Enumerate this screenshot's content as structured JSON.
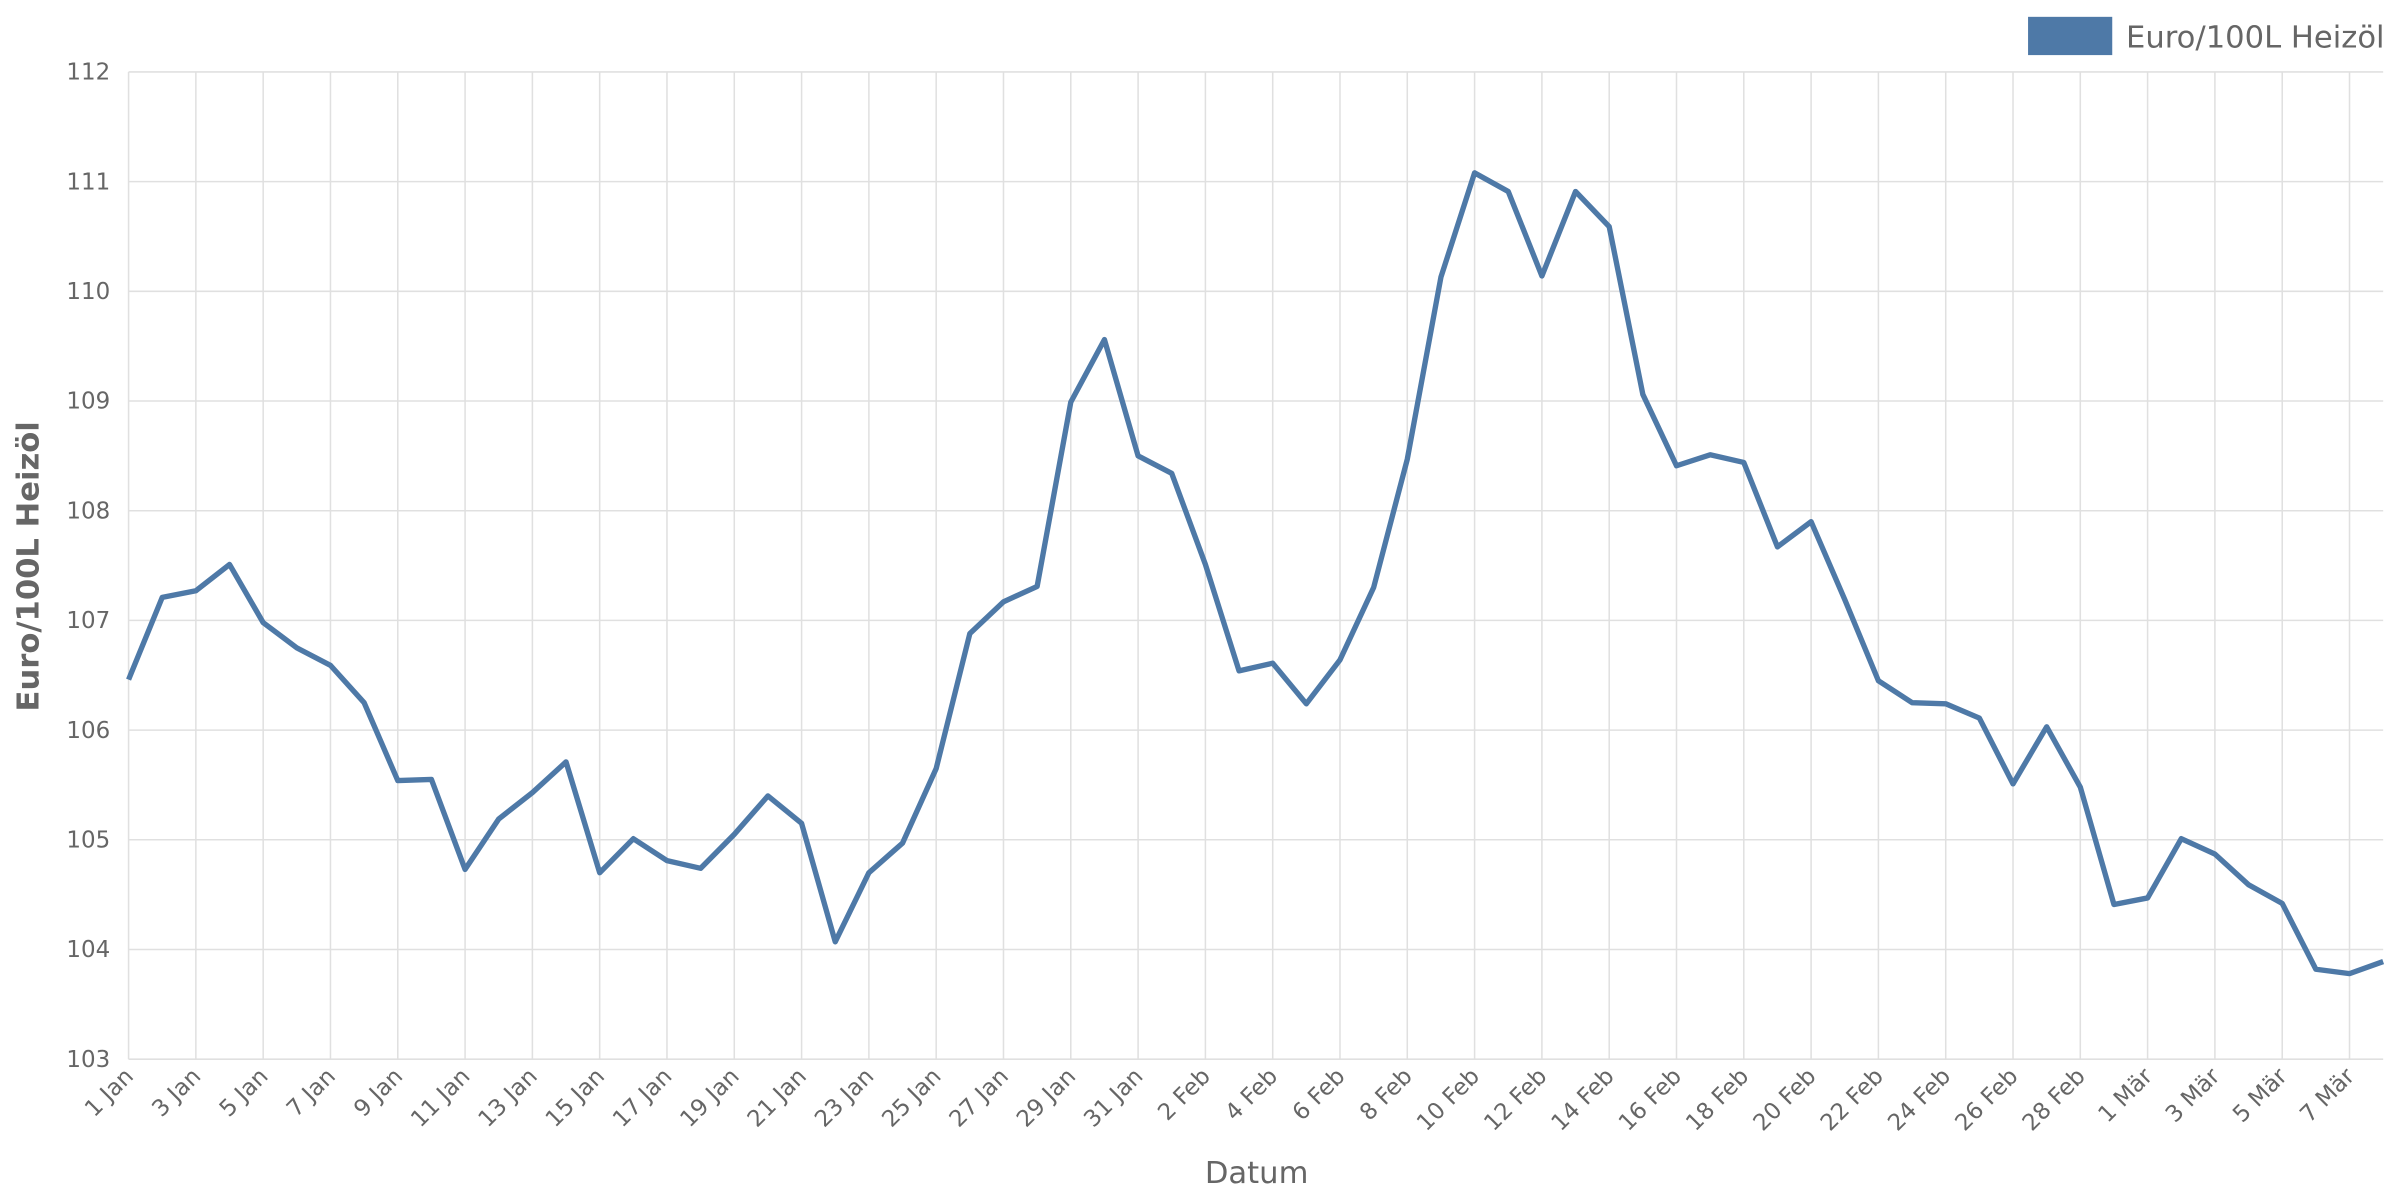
{
  "chart_data": {
    "type": "line",
    "x_label": "Datum",
    "y_label": "Euro/100L Heizöl",
    "categories": [
      "1 Jan",
      null,
      "3 Jan",
      null,
      "5 Jan",
      null,
      "7 Jan",
      null,
      "9 Jan",
      null,
      "11 Jan",
      null,
      "13 Jan",
      null,
      "15 Jan",
      null,
      "17 Jan",
      null,
      "19 Jan",
      null,
      "21 Jan",
      null,
      "23 Jan",
      null,
      "25 Jan",
      null,
      "27 Jan",
      null,
      "29 Jan",
      null,
      "31 Jan",
      null,
      "2 Feb",
      null,
      "4 Feb",
      null,
      "6 Feb",
      null,
      "8 Feb",
      null,
      "10 Feb",
      null,
      "12 Feb",
      null,
      "14 Feb",
      null,
      "16 Feb",
      null,
      "18 Feb",
      null,
      "20 Feb",
      null,
      "22 Feb",
      null,
      "24 Feb",
      null,
      "26 Feb",
      null,
      "28 Feb",
      null,
      "1 Mär",
      null,
      "3 Mär",
      null,
      "5 Mär",
      null,
      "7 Mär",
      null
    ],
    "series": [
      {
        "name": "Euro/100L Heizöl",
        "color": "#4e79a7",
        "values": [
          106.46,
          107.21,
          107.27,
          107.51,
          106.98,
          106.75,
          106.59,
          106.25,
          105.54,
          105.55,
          104.73,
          105.19,
          105.43,
          105.71,
          104.7,
          105.01,
          104.81,
          104.74,
          105.05,
          105.4,
          105.15,
          104.07,
          104.7,
          104.97,
          105.65,
          106.88,
          107.17,
          107.31,
          108.99,
          109.56,
          108.5,
          108.34,
          107.51,
          106.54,
          106.61,
          106.24,
          106.64,
          107.3,
          108.47,
          110.13,
          111.08,
          110.91,
          110.14,
          110.91,
          110.59,
          109.06,
          108.41,
          108.51,
          108.44,
          107.67,
          107.9,
          107.19,
          106.45,
          106.25,
          106.24,
          106.11,
          105.51,
          106.03,
          105.48,
          104.41,
          104.47,
          105.01,
          104.87,
          104.59,
          104.42,
          103.82,
          103.78,
          103.89
        ]
      }
    ],
    "ylim": [
      103,
      112
    ],
    "yticks": [
      103,
      104,
      105,
      106,
      107,
      108,
      109,
      110,
      111,
      112
    ],
    "grid": true,
    "legend": "top-right"
  }
}
